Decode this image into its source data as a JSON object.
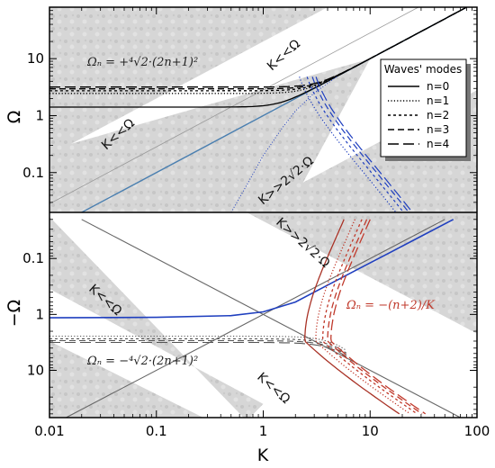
{
  "chart_data": {
    "type": "line",
    "xlabel": "K",
    "x_scale": "log",
    "xlim": [
      0.01,
      100
    ],
    "x_ticks": [
      "0.01",
      "0.1",
      "1",
      "10",
      "100"
    ],
    "panels": [
      {
        "id": "top",
        "ylabel": "Ω",
        "y_scale": "log",
        "ylim": [
          0.02,
          80
        ],
        "y_ticks": [
          "0.1",
          "1",
          "10"
        ],
        "formula": "Ωₙ = +⁴√2·(2n+1)²",
        "regions": [
          "K<<Ω",
          "K<<Ω",
          "K>>2√2·Ω"
        ],
        "series": [
          {
            "name": "n=0",
            "color": "#000000",
            "plateau": 1.41,
            "x": [
              0.01,
              0.5,
              1,
              2,
              3,
              4,
              5,
              7,
              10,
              20,
              50,
              100
            ],
            "y": [
              1.41,
              1.45,
              1.55,
              2.1,
              3.0,
              4.0,
              5.0,
              7.0,
              10.0,
              20.0,
              50.0,
              100.0
            ]
          },
          {
            "name": "n=1",
            "color": "#000000",
            "plateau": 2.45
          },
          {
            "name": "n=2",
            "color": "#000000",
            "plateau": 2.73
          },
          {
            "name": "n=3",
            "color": "#000000",
            "plateau": 2.95
          },
          {
            "name": "n=4",
            "color": "#000000",
            "plateau": 3.17
          },
          {
            "name": "low branch n=1",
            "color": "#1f3fbf",
            "k_turn": 2.8,
            "omega_turn": 1.2
          },
          {
            "name": "low branch n=2",
            "color": "#1f3fbf",
            "k_turn": 3.3,
            "omega_turn": 1.2
          },
          {
            "name": "low branch n=3",
            "color": "#1f3fbf",
            "k_turn": 3.7,
            "omega_turn": 1.2
          },
          {
            "name": "low branch n=4",
            "color": "#1f3fbf",
            "k_turn": 4.0,
            "omega_turn": 1.2
          },
          {
            "name": "low branch n=0",
            "color": "#1f3fbf",
            "x": [
              0.5,
              0.7,
              1,
              1.5,
              2,
              3,
              5
            ],
            "y": [
              0.02,
              0.06,
              0.2,
              0.6,
              1.2,
              2.5,
              5.0
            ]
          }
        ],
        "guides": [
          {
            "label": "Ω = K",
            "x": [
              0.02,
              100
            ],
            "y": [
              0.02,
              100
            ]
          },
          {
            "label": "Ω = 2√2·K",
            "x": [
              0.01,
              100
            ],
            "y": [
              0.0283,
              283
            ]
          }
        ]
      },
      {
        "id": "bottom",
        "ylabel": "−Ω",
        "y_scale": "log",
        "y_reversed": true,
        "ylim": [
          0.015,
          70
        ],
        "y_ticks": [
          "0.1",
          "1",
          "10"
        ],
        "formula": "Ωₙ = −⁴√2·(2n+1)²",
        "formula_red": "Ωₙ = −(n+2)/K",
        "regions": [
          "K>>2√2·Ω",
          "K<<Ω",
          "K<<Ω"
        ],
        "series": [
          {
            "name": "blue n=0",
            "color": "#1f3fbf",
            "x": [
              0.01,
              0.1,
              0.5,
              1,
              2,
              4,
              8,
              15,
              30,
              60
            ],
            "y": [
              1.15,
              1.13,
              1.05,
              0.9,
              0.6,
              0.3,
              0.15,
              0.08,
              0.04,
              0.02
            ]
          },
          {
            "name": "grey n=0",
            "color": "#555555",
            "plateau": 2.45
          },
          {
            "name": "grey n=1",
            "color": "#555555",
            "plateau": 2.73
          },
          {
            "name": "grey n=2",
            "color": "#555555",
            "plateau": 2.95
          },
          {
            "name": "grey n=3",
            "color": "#555555",
            "plateau": 3.17
          },
          {
            "name": "red n=0",
            "color": "#c0392b",
            "k_turn": 2.45
          },
          {
            "name": "red n=1",
            "color": "#c0392b",
            "k_turn": 3.1
          },
          {
            "name": "red n=2",
            "color": "#c0392b",
            "k_turn": 3.6
          },
          {
            "name": "red n=3",
            "color": "#c0392b",
            "k_turn": 4.0
          },
          {
            "name": "red n=4",
            "color": "#c0392b",
            "k_turn": 4.3
          }
        ],
        "guides": [
          {
            "label": "Ω = K",
            "x": [
              0.02,
              100
            ],
            "y": [
              0.02,
              100
            ]
          },
          {
            "label": "Ω = 1/K",
            "x": [
              0.01,
              50
            ],
            "y": [
              100,
              0.02
            ]
          }
        ]
      }
    ],
    "legend": {
      "title": "Waves' modes",
      "position": "top-right of top panel",
      "entries": [
        {
          "label": "n=0",
          "dash": "solid"
        },
        {
          "label": "n=1",
          "dash": "dotted"
        },
        {
          "label": "n=2",
          "dash": "short-dash"
        },
        {
          "label": "n=3",
          "dash": "dash"
        },
        {
          "label": "n=4",
          "dash": "long-dash"
        }
      ]
    },
    "colors": {
      "black": "#000000",
      "blue": "#1f3fbf",
      "red": "#c0392b",
      "grey": "#555555",
      "guide": "#4a7fb0",
      "shade": "#d4d4d4"
    }
  },
  "text": {
    "x_axis_label": "K",
    "top_ylabel": "Ω",
    "bottom_ylabel": "−Ω",
    "legend_title": "Waves' modes",
    "top_region_a": "K<<Ω",
    "top_region_b": "K<<Ω",
    "top_region_c": "K>>2√2·Ω",
    "bottom_region_a": "K>>2√2·Ω",
    "bottom_region_b": "K<<Ω",
    "bottom_region_c": "K<<Ω",
    "formula_top": "Ωₙ = +⁴√2·(2n+1)²",
    "formula_bottom": "Ωₙ = −⁴√2·(2n+1)²",
    "formula_red": "Ωₙ = −(n+2)/K"
  }
}
